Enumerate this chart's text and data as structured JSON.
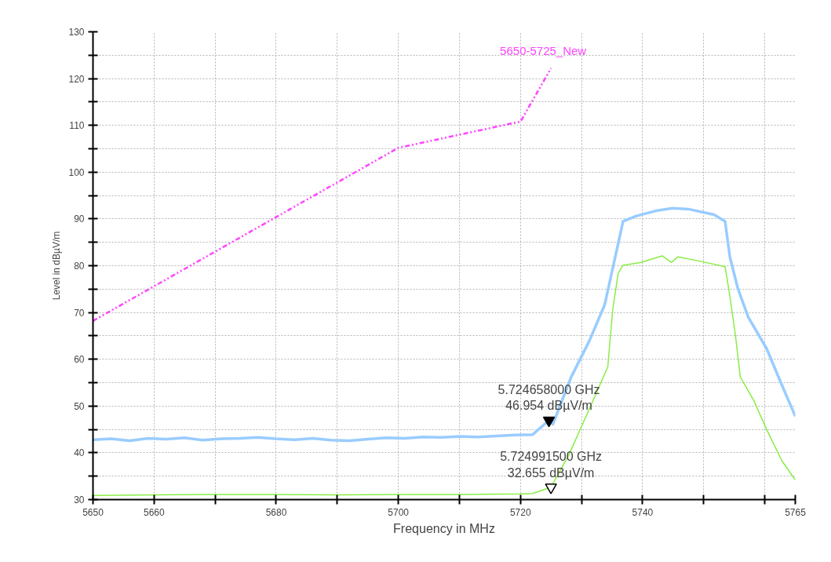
{
  "chart_data": {
    "type": "line",
    "xlabel": "Frequency in MHz",
    "ylabel": "Level in dBµV/m",
    "xlim": [
      5650,
      5765
    ],
    "ylim": [
      30,
      130
    ],
    "xticks": [
      5650,
      5660,
      {
        "value": 5670,
        "label": null
      },
      5680,
      {
        "value": 5690,
        "label": null
      },
      5700,
      {
        "value": 5710,
        "label": null
      },
      5720,
      {
        "value": 5730,
        "label": null
      },
      5740,
      {
        "value": 5750,
        "label": null
      },
      {
        "value": 5760,
        "label": null
      },
      5765
    ],
    "yticks": [
      30,
      {
        "value": 35,
        "label": null
      },
      40,
      {
        "value": 45,
        "label": null
      },
      50,
      {
        "value": 55,
        "label": null
      },
      60,
      {
        "value": 65,
        "label": null
      },
      70,
      {
        "value": 75,
        "label": null
      },
      80,
      {
        "value": 85,
        "label": null
      },
      90,
      {
        "value": 95,
        "label": null
      },
      100,
      {
        "value": 105,
        "label": null
      },
      110,
      {
        "value": 115,
        "label": null
      },
      120,
      {
        "value": 125,
        "label": null
      },
      130
    ],
    "grid": true,
    "series": [
      {
        "name": "5650-5725_New",
        "color": "#ff44ff",
        "line_style": "dashed",
        "x": [
          5650,
          5700,
          5720,
          5725
        ],
        "values": [
          68.2,
          105.2,
          110.8,
          122.2
        ]
      },
      {
        "color": "#99ccff",
        "line_style": "solid",
        "x": [
          5650,
          5653,
          5656,
          5659,
          5662,
          5665,
          5668,
          5671,
          5674,
          5677,
          5680,
          5683,
          5686,
          5689,
          5692,
          5695,
          5698,
          5701,
          5704,
          5707,
          5710,
          5713,
          5716,
          5719,
          5722,
          5724.658,
          5725.3,
          5728.3,
          5731.3,
          5733.8,
          5735.5,
          5736.8,
          5738.9,
          5742.4,
          5744.9,
          5747.5,
          5751.7,
          5753.5,
          5754.3,
          5755.6,
          5757.3,
          5760.3,
          5762.8,
          5765
        ],
        "values": [
          42.8,
          43.0,
          42.6,
          43.1,
          42.9,
          43.2,
          42.7,
          43.0,
          43.1,
          43.3,
          43.0,
          42.8,
          43.1,
          42.7,
          42.6,
          42.9,
          43.2,
          43.1,
          43.4,
          43.3,
          43.5,
          43.4,
          43.6,
          43.8,
          43.9,
          46.954,
          46.1,
          56.2,
          64.0,
          71.7,
          81.8,
          89.5,
          90.6,
          91.8,
          92.3,
          92.1,
          90.9,
          89.5,
          81.8,
          75.1,
          69.0,
          62.3,
          54.5,
          47.8
        ]
      },
      {
        "color": "#88ee44",
        "line_style": "solid",
        "x": [
          5650,
          5660,
          5670,
          5680,
          5690,
          5700,
          5710,
          5720,
          5722,
          5724.9915,
          5727.9,
          5731.7,
          5734.3,
          5735.1,
          5736.0,
          5736.8,
          5739.8,
          5743.2,
          5744.7,
          5745.8,
          5749.6,
          5753.5,
          5754.3,
          5755.2,
          5756.0,
          5758.2,
          5760.3,
          5762.8,
          5765
        ],
        "values": [
          30.9,
          31.0,
          31.1,
          31.1,
          31.0,
          31.1,
          31.1,
          31.2,
          31.3,
          32.655,
          39.5,
          50.6,
          58.4,
          70.6,
          78.4,
          80.1,
          80.7,
          82.1,
          80.7,
          81.9,
          80.9,
          79.8,
          73.4,
          65.1,
          56.2,
          51.2,
          45.0,
          38.3,
          34.2
        ]
      }
    ],
    "annotations": [
      {
        "text": "5.724658000 GHz\n46.954 dBµV/m",
        "x": 5724.658,
        "y": 46.954
      },
      {
        "text": "5.724991500 GHz\n32.655 dBµV/m",
        "x": 5724.9915,
        "y": 32.655
      }
    ]
  }
}
